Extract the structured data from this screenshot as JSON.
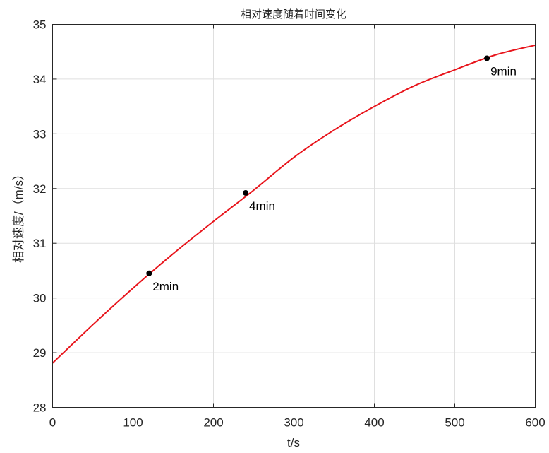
{
  "chart_data": {
    "type": "line",
    "title": "相对速度随着时间变化",
    "xlabel": "t/s",
    "ylabel": "相对速度/（m/s）",
    "xlim": [
      0,
      600
    ],
    "ylim": [
      28,
      35
    ],
    "xticks": [
      0,
      100,
      200,
      300,
      400,
      500,
      600
    ],
    "yticks": [
      28,
      29,
      30,
      31,
      32,
      33,
      34,
      35
    ],
    "grid": true,
    "series": [
      {
        "color": "#e8141b",
        "x": [
          0,
          50,
          100,
          150,
          200,
          250,
          300,
          350,
          400,
          450,
          500,
          550,
          600
        ],
        "y": [
          28.81,
          29.51,
          30.18,
          30.81,
          31.4,
          31.97,
          32.57,
          33.07,
          33.5,
          33.88,
          34.17,
          34.44,
          34.62
        ]
      }
    ],
    "markers": [
      {
        "x": 120,
        "y": 30.45,
        "label": "2min"
      },
      {
        "x": 240,
        "y": 31.92,
        "label": "4min"
      },
      {
        "x": 540,
        "y": 34.38,
        "label": "9min"
      }
    ],
    "marker_color": "#000000"
  }
}
